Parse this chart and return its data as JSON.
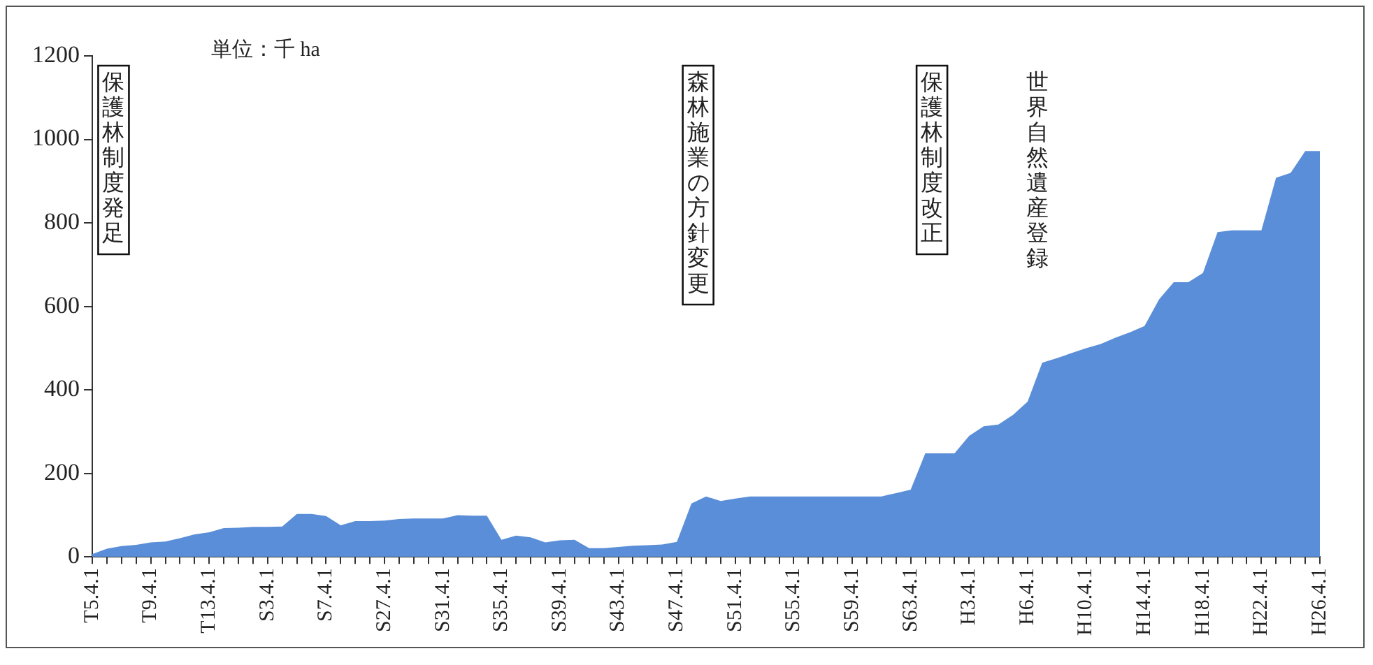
{
  "chart_data": {
    "type": "area",
    "ylabel": "単位：千 ha",
    "categories": [
      "T5.4.1",
      null,
      null,
      null,
      "T9.4.1",
      null,
      null,
      null,
      "T13.4.1",
      null,
      null,
      null,
      "S3.4.1",
      null,
      null,
      null,
      "S7.4.1",
      null,
      null,
      null,
      "S27.4.1",
      null,
      null,
      null,
      "S31.4.1",
      null,
      null,
      null,
      "S35.4.1",
      null,
      null,
      null,
      "S39.4.1",
      null,
      null,
      null,
      "S43.4.1",
      null,
      null,
      null,
      "S47.4.1",
      null,
      null,
      null,
      "S51.4.1",
      null,
      null,
      null,
      "S55.4.1",
      null,
      null,
      null,
      "S59.4.1",
      null,
      null,
      null,
      "S63.4.1",
      null,
      null,
      null,
      "H3.4.1",
      null,
      null,
      null,
      "H6.4.1",
      null,
      null,
      null,
      "H10.4.1",
      null,
      null,
      null,
      "H14.4.1",
      null,
      null,
      null,
      "H18.4.1",
      null,
      null,
      null,
      "H22.4.1",
      null,
      null,
      null,
      "H26.4.1"
    ],
    "series": [
      {
        "color": "#5a8ed8",
        "values": [
          7,
          20,
          26,
          29,
          35,
          37,
          45,
          54,
          59,
          69,
          70,
          72,
          72,
          73,
          103,
          103,
          98,
          76,
          86,
          86,
          87,
          91,
          92,
          92,
          92,
          100,
          99,
          99,
          41,
          51,
          47,
          35,
          40,
          41,
          21,
          21,
          24,
          27,
          28,
          30,
          36,
          128,
          145,
          134,
          140,
          145,
          145,
          145,
          145,
          145,
          145,
          145,
          145,
          145,
          145,
          153,
          161,
          248,
          248,
          248,
          290,
          313,
          317,
          340,
          372,
          465,
          476,
          488,
          500,
          510,
          525,
          538,
          553,
          617,
          658,
          658,
          680,
          778,
          782,
          782,
          782,
          908,
          920,
          972,
          972
        ]
      }
    ],
    "ylim": [
      0,
      1200
    ],
    "yticks": [
      0,
      200,
      400,
      600,
      800,
      1000,
      1200
    ],
    "annotations": [
      "保護林制度発足",
      "森林施業の方針変更",
      "保護林制度改正",
      "世界自然遺産登録"
    ]
  }
}
